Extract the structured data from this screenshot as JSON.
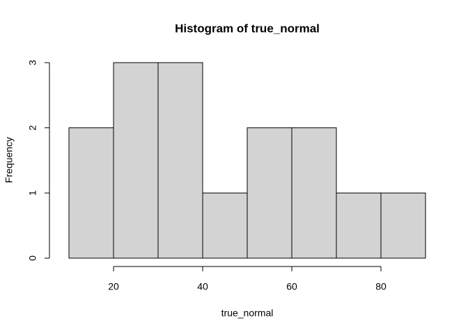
{
  "chart_data": {
    "type": "histogram",
    "title": "Histogram of true_normal",
    "x_label": "true_normal",
    "y_label": "Frequency",
    "bins": [
      10,
      20,
      30,
      40,
      50,
      60,
      70,
      80,
      90
    ],
    "values": [
      2,
      3,
      3,
      1,
      2,
      2,
      1,
      1
    ],
    "color": "#d3d3d3",
    "xlim": [
      10,
      90
    ],
    "xticks": [
      20,
      40,
      60,
      80
    ],
    "ylim": [
      0,
      3
    ],
    "yticks": [
      0,
      1,
      2,
      3
    ],
    "grid": false
  }
}
